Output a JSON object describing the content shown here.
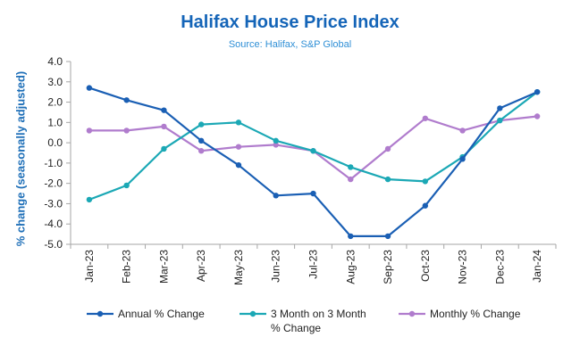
{
  "chart_data": {
    "type": "line",
    "title": "Halifax House Price Index",
    "subtitle": "Source: Halifax,  S&P Global",
    "ylabel": "% change (seasonally adjusted)",
    "xlabel": "",
    "ylim": [
      -5.0,
      4.0
    ],
    "yticks": [
      "4.0",
      "3.0",
      "2.0",
      "1.0",
      "0.0",
      "-1.0",
      "-2.0",
      "-3.0",
      "-4.0",
      "-5.0"
    ],
    "ytick_values": [
      4,
      3,
      2,
      1,
      0,
      -1,
      -2,
      -3,
      -4,
      -5
    ],
    "categories": [
      "Jan-23",
      "Feb-23",
      "Mar-23",
      "Apr-23",
      "May-23",
      "Jun-23",
      "Jul-23",
      "Aug-23",
      "Sep-23",
      "Oct-23",
      "Nov-23",
      "Dec-23",
      "Jan-24"
    ],
    "grid": false,
    "legend_position": "bottom",
    "series": [
      {
        "name": "Annual % Change",
        "legend_lines": [
          "Annual % Change"
        ],
        "color": "#1a5fb4",
        "values": [
          2.7,
          2.1,
          1.6,
          0.1,
          -1.1,
          -2.6,
          -2.5,
          -4.6,
          -4.6,
          -3.1,
          -0.8,
          1.7,
          2.5
        ]
      },
      {
        "name": "3 Month on 3 Month % Change",
        "legend_lines": [
          "3 Month on 3 Month",
          "% Change"
        ],
        "color": "#1ba8b5",
        "values": [
          -2.8,
          -2.1,
          -0.3,
          0.9,
          1.0,
          0.1,
          -0.4,
          -1.2,
          -1.8,
          -1.9,
          -0.7,
          1.1,
          2.5
        ]
      },
      {
        "name": "Monthly % Change",
        "legend_lines": [
          "Monthly % Change"
        ],
        "color": "#b07ccd",
        "values": [
          0.6,
          0.6,
          0.8,
          -0.4,
          -0.2,
          -0.1,
          -0.4,
          -1.8,
          -0.3,
          1.2,
          0.6,
          1.1,
          1.3
        ]
      }
    ]
  }
}
